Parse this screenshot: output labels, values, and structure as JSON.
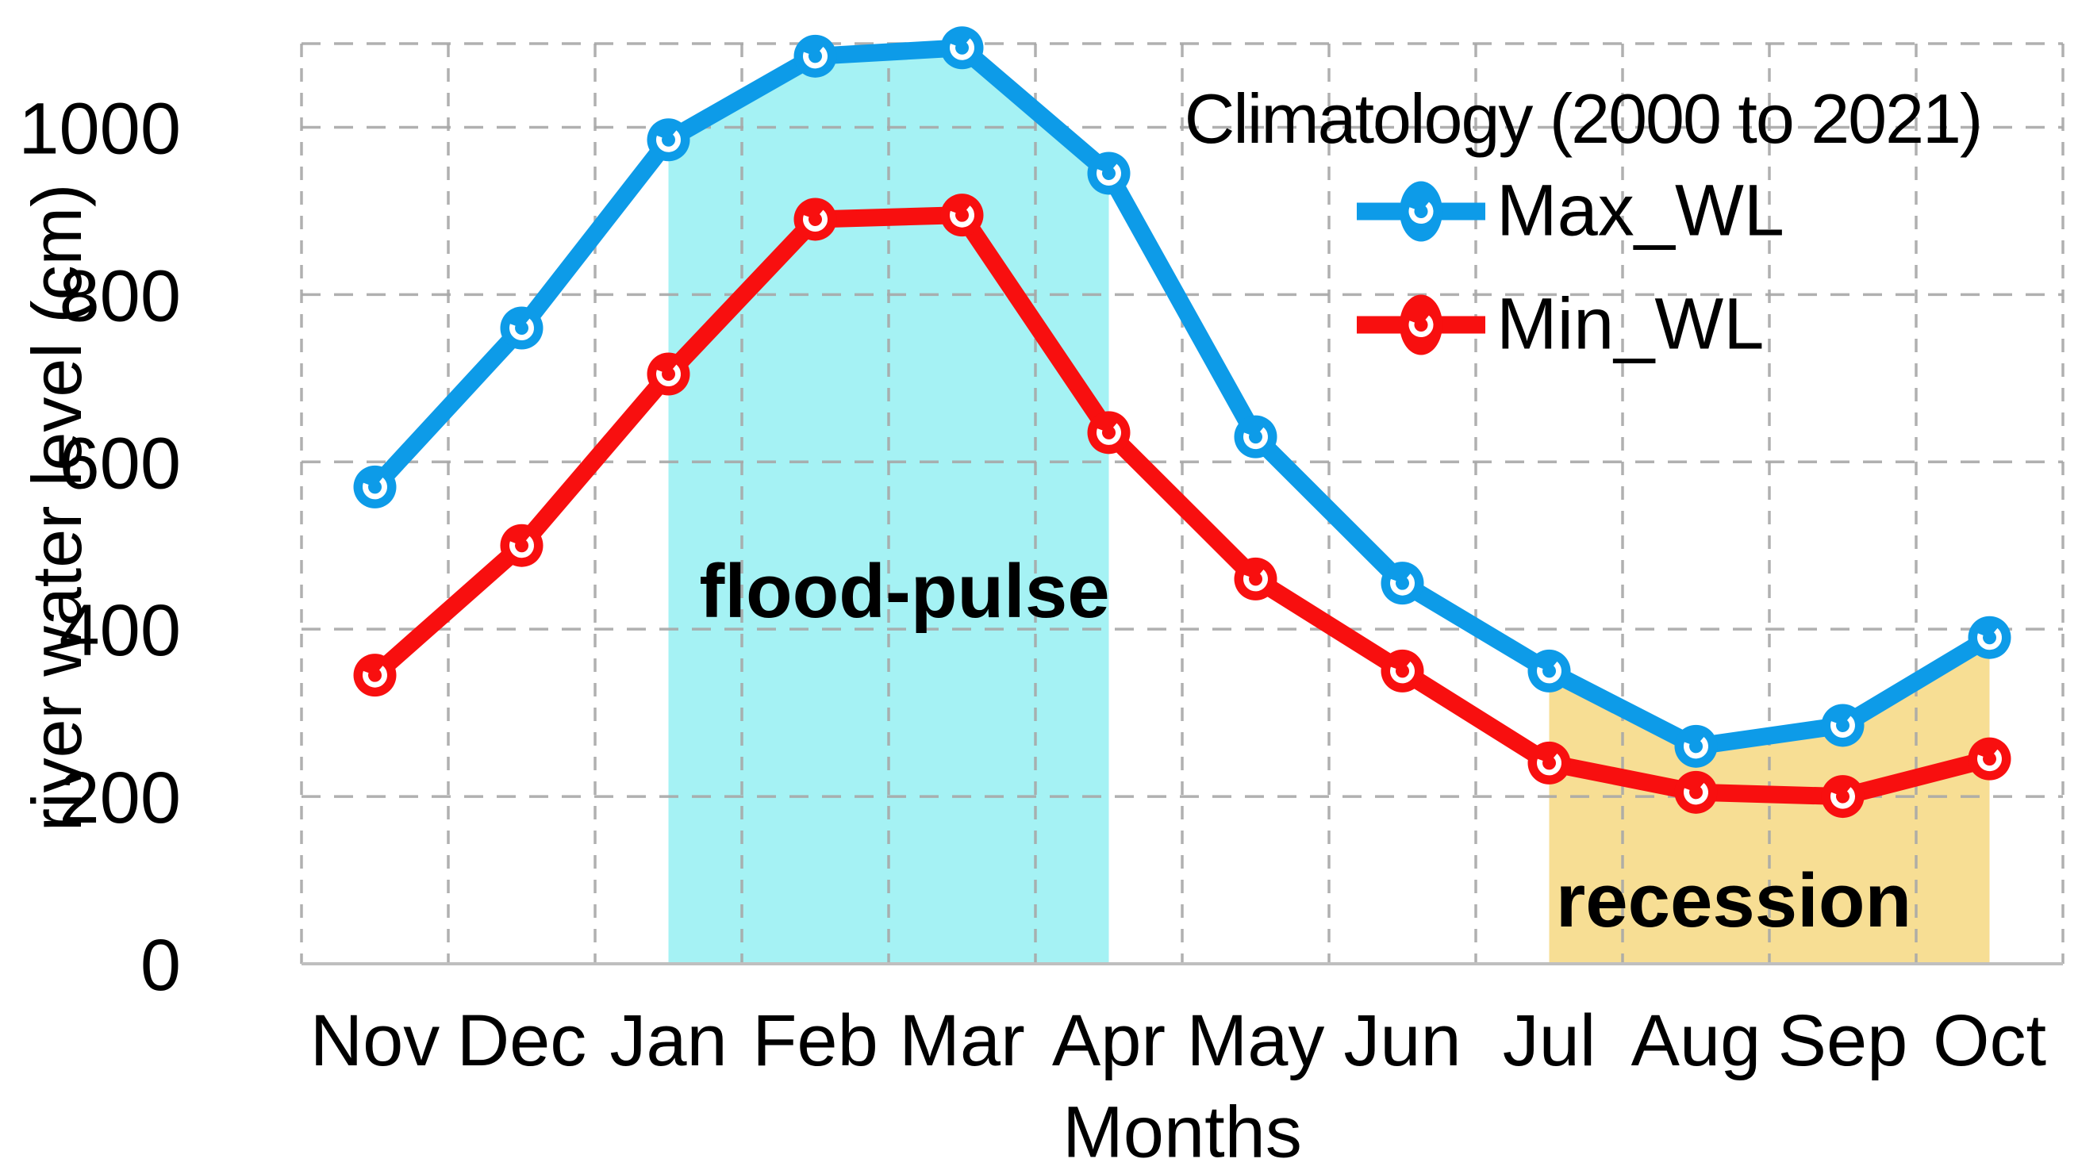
{
  "figure_title": "Climatology (2000 to 2021)",
  "y_axis": {
    "title": "river water level (cm)",
    "tick_labels": [
      "1000",
      "800",
      "600",
      "400",
      "200",
      "0"
    ],
    "tick_values": [
      1000,
      800,
      600,
      400,
      200,
      0
    ]
  },
  "x_axis": {
    "title": "Months",
    "labels": [
      "Nov",
      "Dec",
      "Jan",
      "Feb",
      "Mar",
      "Apr",
      "May",
      "Jun",
      "Jul",
      "Aug",
      "Sep",
      "Oct"
    ]
  },
  "legend": {
    "title": "Climatology (2000 to 2021)",
    "entries": [
      {
        "label": "Max_WL",
        "color": "#0D9BE8"
      },
      {
        "label": "Min_WL",
        "color": "#F80F0F"
      }
    ]
  },
  "annotations": [
    {
      "text": "flood-pulse"
    },
    {
      "text": "recession"
    }
  ],
  "colors": {
    "max_line": "#0D9BE8",
    "min_line": "#F80F0F",
    "flood_fill": "#A0F1F3",
    "recession_fill": "#F7DC8E",
    "gridline": "#A8A8A8",
    "axis_line": "#BFBFBF",
    "text": "#000000"
  },
  "chart_data": {
    "type": "line",
    "title": "Climatology (2000 to 2021)",
    "categories": [
      "Nov",
      "Dec",
      "Jan",
      "Feb",
      "Mar",
      "Apr",
      "May",
      "Jun",
      "Jul",
      "Aug",
      "Sep",
      "Oct"
    ],
    "series": [
      {
        "name": "Max_WL",
        "color": "#0D9BE8",
        "values": [
          570,
          760,
          985,
          1085,
          1095,
          945,
          630,
          455,
          350,
          260,
          285,
          390
        ]
      },
      {
        "name": "Min_WL",
        "color": "#F80F0F",
        "values": [
          345,
          500,
          705,
          890,
          895,
          635,
          460,
          350,
          240,
          205,
          200,
          245
        ]
      }
    ],
    "xlabel": "Months",
    "ylabel": "river water level (cm)",
    "ylim": [
      0,
      1100
    ],
    "y_major_unit": 200,
    "grid": true,
    "gridline_style": "dashed",
    "legend_position": "top-right",
    "marker": "circle",
    "shaded_regions": [
      {
        "label": "flood-pulse",
        "from": "Jan",
        "to": "Apr",
        "color": "#A0F1F3",
        "filled_under_series": "Max_WL"
      },
      {
        "label": "recession",
        "from": "Jul",
        "to": "Oct",
        "color": "#F7DC8E",
        "filled_under_series": "Max_WL"
      }
    ]
  }
}
